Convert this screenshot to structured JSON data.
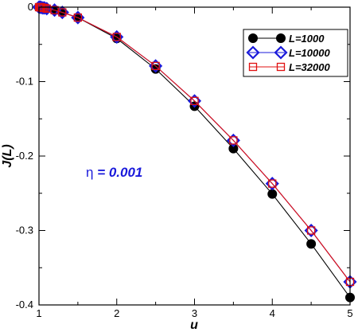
{
  "chart_data": {
    "type": "line",
    "title": "",
    "xlabel": "u",
    "ylabel": "J(L)",
    "xlim": [
      1,
      5
    ],
    "ylim": [
      -0.4,
      0
    ],
    "xticks": [
      1,
      2,
      3,
      4,
      5
    ],
    "yticks": [
      0,
      -0.1,
      -0.2,
      -0.3,
      -0.4
    ],
    "xtick_labels": [
      "1",
      "2",
      "3",
      "4",
      "5"
    ],
    "ytick_labels": [
      "0",
      "-0.1",
      "-0.2",
      "-0.3",
      "-0.4"
    ],
    "grid": false,
    "legend_position": "top-right",
    "annotation": {
      "symbol": "η",
      "rest": " = 0.001",
      "color": "#1a1adb"
    },
    "series": [
      {
        "name": "L=1000",
        "color": "#000000",
        "marker": "circle",
        "x": [
          1.0,
          1.01,
          1.02,
          1.03,
          1.05,
          1.07,
          1.1,
          1.2,
          1.3,
          1.5,
          2.0,
          2.5,
          3.0,
          3.5,
          4.0,
          4.5,
          5.0
        ],
        "y": [
          0.0,
          0.0,
          0.0,
          -0.0005,
          -0.001,
          -0.001,
          -0.002,
          -0.004,
          -0.007,
          -0.014,
          -0.042,
          -0.083,
          -0.133,
          -0.19,
          -0.251,
          -0.318,
          -0.39
        ]
      },
      {
        "name": "L=10000",
        "color": "#1a1adb",
        "marker": "diamond",
        "x": [
          1.0,
          1.01,
          1.02,
          1.03,
          1.05,
          1.07,
          1.1,
          1.2,
          1.3,
          1.5,
          2.0,
          2.5,
          3.0,
          3.5,
          4.0,
          4.5,
          5.0
        ],
        "y": [
          0.0,
          0.0,
          0.0,
          -0.0005,
          -0.001,
          -0.001,
          -0.002,
          -0.004,
          -0.007,
          -0.014,
          -0.04,
          -0.079,
          -0.126,
          -0.179,
          -0.237,
          -0.3,
          -0.369
        ]
      },
      {
        "name": "L=32000",
        "color": "#e01010",
        "marker": "square",
        "x": [
          1.0,
          1.01,
          1.02,
          1.03,
          1.05,
          1.07,
          1.1,
          1.2,
          1.3,
          1.5,
          2.0,
          2.5,
          3.0,
          3.5,
          4.0,
          4.5,
          5.0
        ],
        "y": [
          0.0,
          0.0,
          0.0,
          -0.0005,
          -0.001,
          -0.001,
          -0.002,
          -0.004,
          -0.007,
          -0.014,
          -0.04,
          -0.079,
          -0.126,
          -0.179,
          -0.237,
          -0.3,
          -0.369
        ]
      }
    ]
  }
}
